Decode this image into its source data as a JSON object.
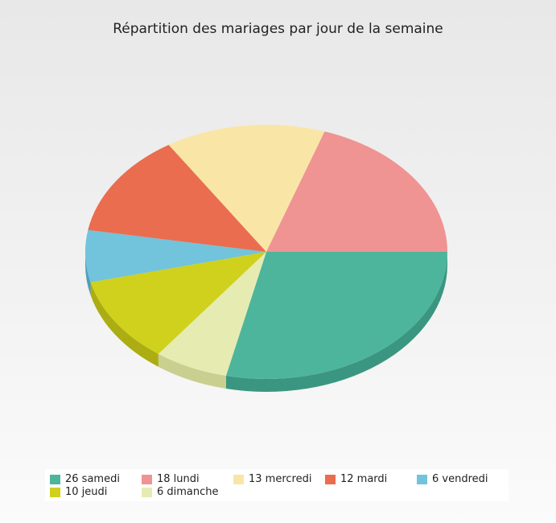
{
  "chart_data": {
    "type": "pie",
    "title": "Répartition des mariages par jour de la semaine",
    "slices": [
      {
        "label": "26 samedi",
        "value": 26,
        "color": "#4db59b",
        "dark": "#3a9680"
      },
      {
        "label": "6 dimanche",
        "value": 6,
        "color": "#e6ebb2",
        "dark": "#c9cf8f"
      },
      {
        "label": "10 jeudi",
        "value": 10,
        "color": "#cfd11c",
        "dark": "#abad12"
      },
      {
        "label": "6 vendredi",
        "value": 6,
        "color": "#72c3dc",
        "dark": "#4f9fba"
      },
      {
        "label": "12 mardi",
        "value": 12,
        "color": "#ea6d4f",
        "dark": "#c9503a"
      },
      {
        "label": "13 mercredi",
        "value": 13,
        "color": "#f9e6a6",
        "dark": "#dccb86"
      },
      {
        "label": "18 lundi",
        "value": 18,
        "color": "#f09393",
        "dark": "#d07575"
      }
    ],
    "legend_order": [
      "26 samedi",
      "18 lundi",
      "13 mercredi",
      "12 mardi",
      "6 vendredi",
      "10 jeudi",
      "6 dimanche"
    ],
    "legend_position": "bottom"
  }
}
